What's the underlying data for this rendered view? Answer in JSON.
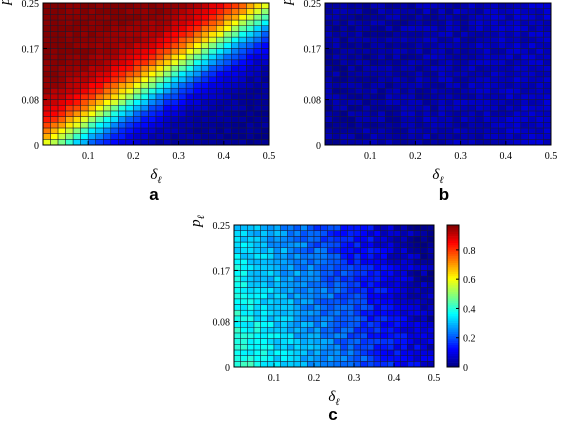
{
  "chart_data": [
    {
      "type": "heatmap",
      "panel_label": "a",
      "x_label": {
        "main": "δ",
        "sub": "ℓ"
      },
      "y_label": {
        "main": "p",
        "sub": "ℓ"
      },
      "x_ticks": [
        "0.1",
        "0.2",
        "0.3",
        "0.4",
        "0.5"
      ],
      "y_ticks": [
        "0",
        "0.08",
        "0.17",
        "0.25"
      ],
      "xlim": [
        0,
        0.5
      ],
      "ylim": [
        0,
        0.25
      ],
      "grid": {
        "cols": 30,
        "rows": 25
      },
      "pattern": "upper-left triangle near 1.0 with sharp transition band along p ≈ 0.5·δ; lower-right near 0"
    },
    {
      "type": "heatmap",
      "panel_label": "b",
      "x_label": {
        "main": "δ",
        "sub": "ℓ"
      },
      "y_label": {
        "main": "p",
        "sub": "ℓ"
      },
      "x_ticks": [
        "0.1",
        "0.2",
        "0.3",
        "0.4",
        "0.5"
      ],
      "y_ticks": [
        "0",
        "0.08",
        "0.17",
        "0.25"
      ],
      "xlim": [
        0,
        0.5
      ],
      "ylim": [
        0,
        0.25
      ],
      "grid": {
        "cols": 30,
        "rows": 25
      },
      "pattern": "uniformly low values ≈ 0.02–0.08, slightly higher toward bottom-right"
    },
    {
      "type": "heatmap",
      "panel_label": "c",
      "x_label": {
        "main": "δ",
        "sub": "ℓ"
      },
      "y_label": {
        "main": "p",
        "sub": "ℓ"
      },
      "x_ticks": [
        "0.1",
        "0.2",
        "0.3",
        "0.4",
        "0.5"
      ],
      "y_ticks": [
        "0",
        "0.08",
        "0.17",
        "0.25"
      ],
      "xlim": [
        0,
        0.5
      ],
      "ylim": [
        0,
        0.25
      ],
      "grid": {
        "cols": 30,
        "rows": 25
      },
      "pattern": "moderate values ≈ 0.2–0.45, highest at small δ and small p, decreasing toward large δ",
      "colorbar": {
        "ticks": [
          "0",
          "0.2",
          "0.4",
          "0.6",
          "0.8"
        ],
        "range": [
          0,
          0.97
        ],
        "colormap": "jet"
      }
    }
  ]
}
